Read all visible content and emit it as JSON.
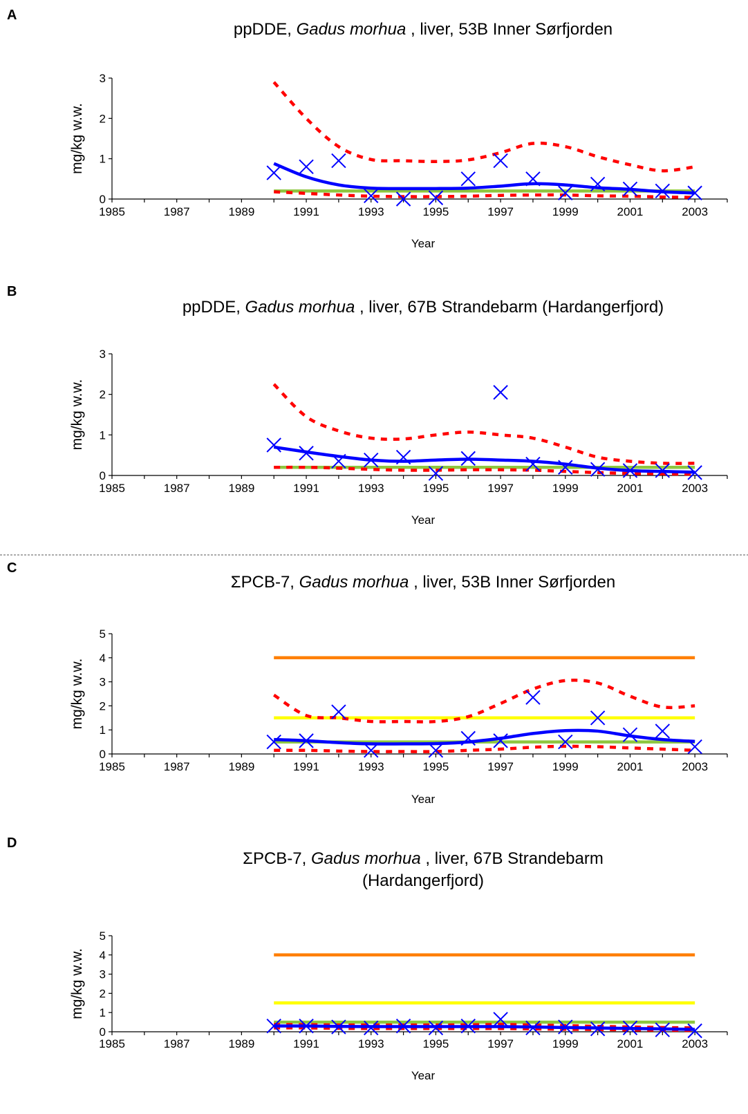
{
  "colors": {
    "trend": "#0000ff",
    "ci": "#ff0000",
    "green_line": "#8dc63f",
    "yellow_line": "#ffff00",
    "orange_line": "#ff7f00",
    "marker": "#0000ff"
  },
  "charts": [
    {
      "letter": "A",
      "title_parts": [
        "ppDDE, ",
        "Gadus morhua",
        " , liver, 53B  Inner Sørfjorden"
      ],
      "title_line2": "",
      "ylabel": "mg/kg w.w.",
      "xlabel": "Year",
      "xticks": [
        "1985",
        "1987",
        "1989",
        "1991",
        "1993",
        "1995",
        "1997",
        "1999",
        "2001",
        "2003"
      ],
      "yticks": [
        "0",
        "1",
        "2",
        "3"
      ]
    },
    {
      "letter": "B",
      "title_parts": [
        "ppDDE, ",
        "Gadus morhua",
        " , liver, 67B  Strandebarm (Hardangerfjord)"
      ],
      "title_line2": "",
      "ylabel": "mg/kg w.w.",
      "xlabel": "Year",
      "xticks": [
        "1985",
        "1987",
        "1989",
        "1991",
        "1993",
        "1995",
        "1997",
        "1999",
        "2001",
        "2003"
      ],
      "yticks": [
        "0",
        "1",
        "2",
        "3"
      ]
    },
    {
      "letter": "C",
      "title_parts": [
        "ΣPCB-7, ",
        "Gadus morhua",
        " , liver, 53B  Inner Sørfjorden"
      ],
      "title_line2": "",
      "ylabel": "mg/kg w.w.",
      "xlabel": "Year",
      "xticks": [
        "1985",
        "1987",
        "1989",
        "1991",
        "1993",
        "1995",
        "1997",
        "1999",
        "2001",
        "2003"
      ],
      "yticks": [
        "0",
        "1",
        "2",
        "3",
        "4",
        "5"
      ]
    },
    {
      "letter": "D",
      "title_parts": [
        "ΣPCB-7, ",
        "Gadus morhua",
        " , liver, 67B  Strandebarm"
      ],
      "title_line2": "(Hardangerfjord)",
      "ylabel": "mg/kg w.w.",
      "xlabel": "Year",
      "xticks": [
        "1985",
        "1987",
        "1989",
        "1991",
        "1993",
        "1995",
        "1997",
        "1999",
        "2001",
        "2003"
      ],
      "yticks": [
        "0",
        "1",
        "2",
        "3",
        "4",
        "5"
      ]
    }
  ],
  "chart_data": [
    {
      "type": "line",
      "xlim": [
        1985,
        2004
      ],
      "ylim": [
        0,
        3
      ],
      "grid": false,
      "series": [
        {
          "x": [
            1990,
            1991,
            1992,
            1993,
            1994,
            1995,
            1996,
            1997,
            1998,
            1999,
            2000,
            2001,
            2002,
            2003
          ],
          "y": [
            0.65,
            0.8,
            0.95,
            0.08,
            0.0,
            0.03,
            0.5,
            0.95,
            0.5,
            0.15,
            0.37,
            0.25,
            0.2,
            0.15
          ]
        },
        {
          "x": [
            1990,
            1991,
            1992,
            1993,
            1994,
            1995,
            1996,
            1997,
            1998,
            1999,
            2000,
            2001,
            2002,
            2003
          ],
          "y": [
            0.88,
            0.55,
            0.35,
            0.27,
            0.26,
            0.26,
            0.27,
            0.32,
            0.38,
            0.35,
            0.28,
            0.24,
            0.18,
            0.15
          ]
        },
        {
          "x": [
            1990,
            1991,
            1992,
            1993,
            1994,
            1995,
            1996,
            1997,
            1998,
            1999,
            2000,
            2001,
            2002,
            2003
          ],
          "y": [
            2.9,
            2.0,
            1.3,
            0.98,
            0.95,
            0.93,
            0.97,
            1.15,
            1.38,
            1.3,
            1.05,
            0.85,
            0.7,
            0.8
          ]
        },
        {
          "x": [
            1990,
            1991,
            1992,
            1993,
            1994,
            1995,
            1996,
            1997,
            1998,
            1999,
            2000,
            2001,
            2002,
            2003
          ],
          "y": [
            0.18,
            0.14,
            0.1,
            0.07,
            0.06,
            0.06,
            0.07,
            0.09,
            0.1,
            0.1,
            0.08,
            0.07,
            0.05,
            0.04
          ]
        },
        {
          "x": [
            1990,
            2003
          ],
          "y": [
            0.2,
            0.2
          ]
        }
      ]
    },
    {
      "type": "line",
      "xlim": [
        1985,
        2004
      ],
      "ylim": [
        0,
        3
      ],
      "grid": false,
      "series": [
        {
          "x": [
            1990,
            1991,
            1992,
            1993,
            1994,
            1995,
            1996,
            1997,
            1998,
            1999,
            2000,
            2001,
            2002,
            2003
          ],
          "y": [
            0.75,
            0.55,
            0.35,
            0.38,
            0.45,
            0.05,
            0.42,
            2.05,
            0.28,
            0.2,
            0.15,
            0.12,
            0.12,
            0.07
          ]
        },
        {
          "x": [
            1990,
            1991,
            1992,
            1993,
            1994,
            1995,
            1996,
            1997,
            1998,
            1999,
            2000,
            2001,
            2002,
            2003
          ],
          "y": [
            0.7,
            0.58,
            0.47,
            0.38,
            0.35,
            0.38,
            0.4,
            0.38,
            0.35,
            0.28,
            0.18,
            0.12,
            0.1,
            0.08
          ]
        },
        {
          "x": [
            1990,
            1991,
            1992,
            1993,
            1994,
            1995,
            1996,
            1997,
            1998,
            1999,
            2000,
            2001,
            2002,
            2003
          ],
          "y": [
            2.25,
            1.45,
            1.1,
            0.92,
            0.9,
            1.0,
            1.07,
            1.0,
            0.92,
            0.7,
            0.45,
            0.35,
            0.3,
            0.3
          ]
        },
        {
          "x": [
            1990,
            1991,
            1992,
            1993,
            1994,
            1995,
            1996,
            1997,
            1998,
            1999,
            2000,
            2001,
            2002,
            2003
          ],
          "y": [
            0.2,
            0.2,
            0.18,
            0.15,
            0.13,
            0.13,
            0.14,
            0.14,
            0.13,
            0.1,
            0.07,
            0.05,
            0.04,
            0.03
          ]
        },
        {
          "x": [
            1990,
            2003
          ],
          "y": [
            0.2,
            0.2
          ]
        }
      ]
    },
    {
      "type": "line",
      "xlim": [
        1985,
        2004
      ],
      "ylim": [
        0,
        5
      ],
      "grid": false,
      "series": [
        {
          "x": [
            1990,
            1991,
            1992,
            1993,
            1995,
            1996,
            1997,
            1998,
            1999,
            2000,
            2001,
            2002,
            2003
          ],
          "y": [
            0.5,
            0.55,
            1.75,
            0.15,
            0.15,
            0.65,
            0.55,
            2.35,
            0.5,
            1.5,
            0.8,
            0.95,
            0.3
          ]
        },
        {
          "x": [
            1990,
            1991,
            1992,
            1993,
            1994,
            1995,
            1996,
            1997,
            1998,
            1999,
            2000,
            2001,
            2002,
            2003
          ],
          "y": [
            0.6,
            0.55,
            0.47,
            0.42,
            0.42,
            0.43,
            0.5,
            0.65,
            0.85,
            0.97,
            0.95,
            0.75,
            0.6,
            0.52
          ]
        },
        {
          "x": [
            1990,
            1991,
            1992,
            1993,
            1994,
            1995,
            1996,
            1997,
            1998,
            1999,
            2000,
            2001,
            2002,
            2003
          ],
          "y": [
            2.45,
            1.6,
            1.5,
            1.35,
            1.35,
            1.35,
            1.55,
            2.1,
            2.7,
            3.05,
            2.95,
            2.4,
            1.95,
            2.0
          ]
        },
        {
          "x": [
            1990,
            1991,
            1992,
            1993,
            1994,
            1995,
            1996,
            1997,
            1998,
            1999,
            2000,
            2001,
            2002,
            2003
          ],
          "y": [
            0.15,
            0.15,
            0.12,
            0.1,
            0.1,
            0.1,
            0.15,
            0.2,
            0.28,
            0.32,
            0.3,
            0.25,
            0.2,
            0.15
          ]
        },
        {
          "x": [
            1990,
            2003
          ],
          "y": [
            0.5,
            0.5
          ]
        },
        {
          "x": [
            1990,
            2003
          ],
          "y": [
            1.5,
            1.5
          ]
        },
        {
          "x": [
            1990,
            2003
          ],
          "y": [
            4.0,
            4.0
          ]
        }
      ]
    },
    {
      "type": "line",
      "xlim": [
        1985,
        2004
      ],
      "ylim": [
        0,
        5
      ],
      "grid": false,
      "series": [
        {
          "x": [
            1990,
            1991,
            1992,
            1993,
            1994,
            1995,
            1996,
            1997,
            1998,
            1999,
            2000,
            2001,
            2002,
            2003
          ],
          "y": [
            0.3,
            0.3,
            0.25,
            0.2,
            0.3,
            0.2,
            0.3,
            0.65,
            0.2,
            0.25,
            0.15,
            0.2,
            0.1,
            0.05
          ]
        },
        {
          "x": [
            1990,
            1991,
            1992,
            1993,
            1994,
            1995,
            1996,
            1997,
            1998,
            1999,
            2000,
            2001,
            2002,
            2003
          ],
          "y": [
            0.3,
            0.3,
            0.28,
            0.27,
            0.27,
            0.27,
            0.27,
            0.27,
            0.25,
            0.22,
            0.2,
            0.17,
            0.15,
            0.12
          ]
        },
        {
          "x": [
            1990,
            1991,
            1992,
            1993,
            1994,
            1995,
            1996,
            1997,
            1998,
            1999,
            2000,
            2001,
            2002,
            2003
          ],
          "y": [
            0.38,
            0.37,
            0.35,
            0.35,
            0.35,
            0.35,
            0.36,
            0.38,
            0.35,
            0.32,
            0.28,
            0.25,
            0.22,
            0.2
          ]
        },
        {
          "x": [
            1990,
            1991,
            1992,
            1993,
            1994,
            1995,
            1996,
            1997,
            1998,
            1999,
            2000,
            2001,
            2002,
            2003
          ],
          "y": [
            0.2,
            0.2,
            0.18,
            0.17,
            0.17,
            0.17,
            0.17,
            0.17,
            0.15,
            0.13,
            0.12,
            0.1,
            0.08,
            0.07
          ]
        },
        {
          "x": [
            1990,
            2003
          ],
          "y": [
            0.5,
            0.5
          ]
        },
        {
          "x": [
            1990,
            2003
          ],
          "y": [
            1.5,
            1.5
          ]
        },
        {
          "x": [
            1990,
            2003
          ],
          "y": [
            4.0,
            4.0
          ]
        }
      ]
    }
  ]
}
